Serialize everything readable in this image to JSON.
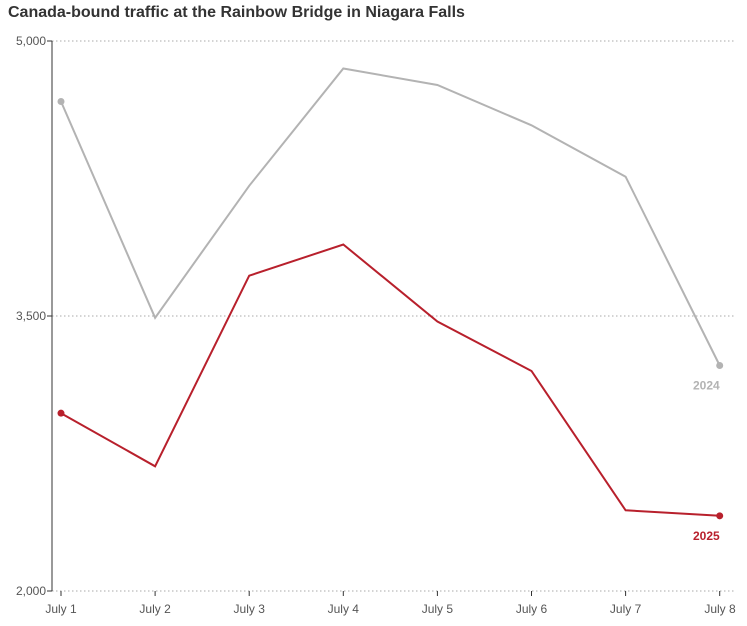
{
  "title": "Canada-bound traffic at the Rainbow Bridge in Niagara Falls",
  "colors": {
    "series_2024": "#b3b3b3",
    "series_2025": "#b8202c",
    "grid": "#aaaaaa",
    "axis": "#333333"
  },
  "chart_data": {
    "type": "line",
    "title": "Canada-bound traffic at the Rainbow Bridge in Niagara Falls",
    "categories": [
      "July 1",
      "July 2",
      "July 3",
      "July 4",
      "July 5",
      "July 6",
      "July 7",
      "July 8"
    ],
    "series": [
      {
        "name": "2024",
        "values": [
          4670,
          3490,
          4210,
          4850,
          4760,
          4540,
          4260,
          3230
        ]
      },
      {
        "name": "2025",
        "values": [
          2970,
          2680,
          3720,
          3890,
          3470,
          3200,
          2440,
          2410
        ]
      }
    ],
    "y_ticks": [
      {
        "value": 2000,
        "label": "2,000"
      },
      {
        "value": 3500,
        "label": "3,500"
      },
      {
        "value": 5000,
        "label": "5,000"
      }
    ],
    "ylim": [
      2000,
      5000
    ],
    "xlabel": "",
    "ylabel": "",
    "grid": true,
    "legend": "direct labels at line ends"
  }
}
